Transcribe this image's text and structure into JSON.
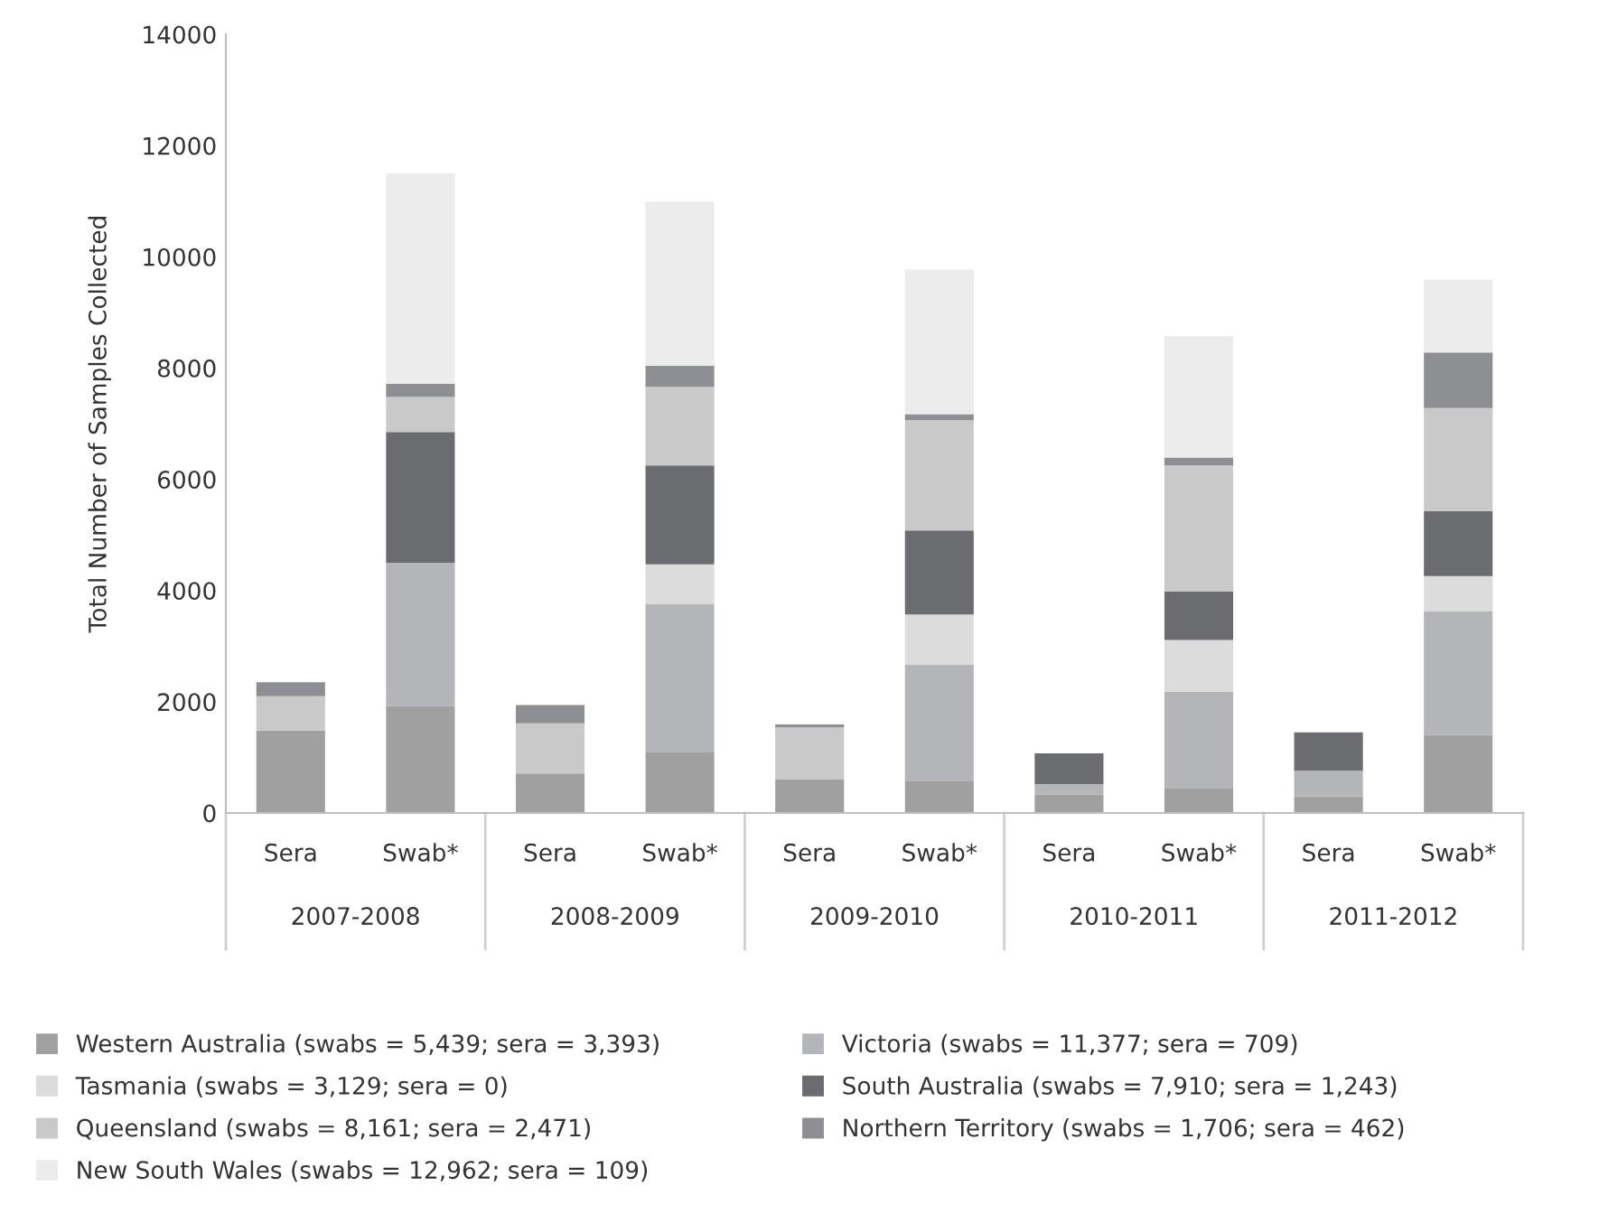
{
  "chart_data": {
    "type": "bar",
    "stacked": true,
    "ylabel": "Total Number of Samples Collected",
    "categories": [
      "Sera",
      "Swab*",
      "Sera",
      "Swab*",
      "Sera",
      "Swab*",
      "Sera",
      "Swab*",
      "Sera",
      "Swab*"
    ],
    "annotations": [
      "2007-2008",
      "2008-2009",
      "2009-2010",
      "2010-2011",
      "2011-2012"
    ],
    "ylim": [
      0,
      14000
    ],
    "yticks": [
      0,
      2000,
      4000,
      6000,
      8000,
      10000,
      12000,
      14000
    ],
    "grid": false,
    "legend": "bottom",
    "series": [
      {
        "name": "Western Australia (swabs = 5,439; sera = 3,393)",
        "color": "#a0a0a0",
        "values": [
          1480,
          1920,
          710,
          1090,
          600,
          580,
          330,
          440,
          300,
          1400
        ]
      },
      {
        "name": "Victoria (swabs = 11,377; sera = 709)",
        "color": "#b4b5b8",
        "values": [
          0,
          2580,
          0,
          2670,
          0,
          2090,
          190,
          1740,
          460,
          2230
        ]
      },
      {
        "name": "Tasmania (swabs = 3,129; sera = 0)",
        "color": "#dcdcdc",
        "values": [
          0,
          0,
          0,
          710,
          0,
          900,
          0,
          930,
          0,
          630
        ]
      },
      {
        "name": "South Australia (swabs = 7,910; sera = 1,243)",
        "color": "#6b6c70",
        "values": [
          0,
          2350,
          0,
          1780,
          0,
          1510,
          550,
          870,
          690,
          1170
        ]
      },
      {
        "name": "Queensland (swabs = 8,161; sera = 2,471)",
        "color": "#c9c9c9",
        "values": [
          620,
          630,
          900,
          1410,
          940,
          1980,
          0,
          2270,
          0,
          1850
        ]
      },
      {
        "name": "Northern Territory (swabs = 1,706; sera = 462)",
        "color": "#8e8f92",
        "values": [
          250,
          240,
          330,
          380,
          50,
          110,
          0,
          140,
          0,
          1000
        ]
      },
      {
        "name": "New South Wales (swabs = 12,962; sera = 109)",
        "color": "#ececec",
        "values": [
          0,
          3780,
          0,
          2950,
          0,
          2600,
          0,
          2180,
          0,
          1310
        ]
      }
    ]
  }
}
